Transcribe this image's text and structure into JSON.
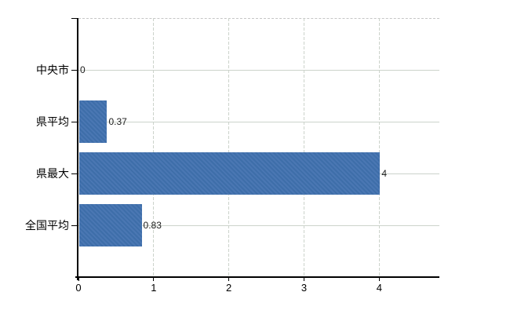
{
  "chart_data": {
    "type": "bar",
    "orientation": "horizontal",
    "title": "",
    "xlabel": "",
    "ylabel": "",
    "categories": [
      "中央市",
      "県平均",
      "県最大",
      "全国平均"
    ],
    "values": [
      0,
      0.37,
      4,
      0.83
    ],
    "value_labels": [
      "0",
      "0.37",
      "4",
      "0.83"
    ],
    "x_ticks": [
      0,
      1,
      2,
      3,
      4
    ],
    "x_tick_labels": [
      "0",
      "1",
      "2",
      "3",
      "4"
    ],
    "xlim": [
      0,
      4.8
    ],
    "grid": "on",
    "legend": "none",
    "colors": {
      "bar": "#4272ae",
      "gridline": "#ccd3cb",
      "plot_top_border": "#c6c6c6",
      "axis": "#000000",
      "category_text": "#000000",
      "value_text": "#1c1c1c"
    }
  }
}
